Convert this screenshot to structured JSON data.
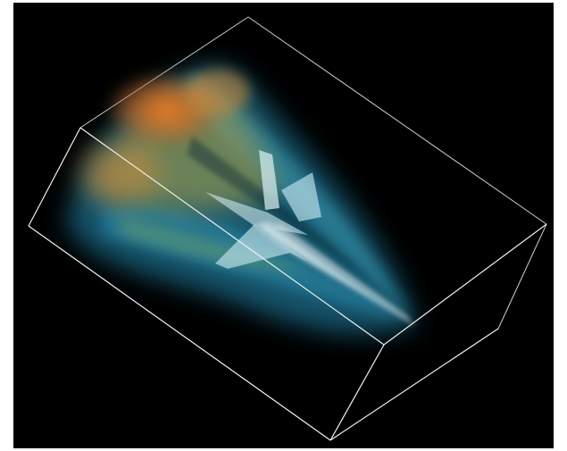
{
  "scene": {
    "subject": "aircraft-volume-rendering",
    "colors": {
      "background": "#000000",
      "page": "#ffffff",
      "box_lines": "#e6e6e6",
      "plume_hot": "#e8711c",
      "plume_warm": "#c9a040",
      "plume_mid": "#6aa07a",
      "plume_cool": "#1f6f8f",
      "aircraft": "#cfe8ee"
    }
  }
}
